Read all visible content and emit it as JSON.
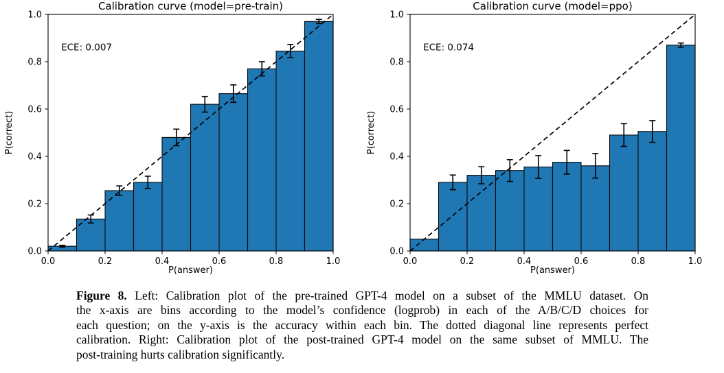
{
  "page": {
    "background": "#ffffff"
  },
  "caption": {
    "label": "Figure 8.",
    "lines": [
      "Left: Calibration plot of the pre-trained GPT-4 model on a subset of the MMLU dataset. On",
      "the x-axis are bins according to the model’s confidence (logprob) in each of the A/B/C/D choices for",
      "each question; on the y-axis is the accuracy within each bin. The dotted diagonal line represents perfect",
      "calibration. Right: Calibration plot of the post-trained GPT-4 model on the same subset of MMLU. The",
      "post-training hurts calibration significantly."
    ]
  },
  "chart_data": [
    {
      "type": "bar",
      "title": "Calibration curve (model=pre-train)",
      "xlabel": "P(answer)",
      "ylabel": "P(correct)",
      "annotation": "ECE: 0.007",
      "bin_edges": [
        0.0,
        0.1,
        0.2,
        0.3,
        0.4,
        0.5,
        0.6,
        0.7,
        0.8,
        0.9,
        1.0
      ],
      "values": [
        0.02,
        0.135,
        0.255,
        0.29,
        0.48,
        0.62,
        0.665,
        0.77,
        0.845,
        0.97
      ],
      "errors": [
        0.004,
        0.017,
        0.02,
        0.026,
        0.035,
        0.033,
        0.037,
        0.03,
        0.028,
        0.009
      ],
      "xlim": [
        0.0,
        1.0
      ],
      "ylim": [
        0.0,
        1.0
      ],
      "xticks": [
        "0.0",
        "0.2",
        "0.4",
        "0.6",
        "0.8",
        "1.0"
      ],
      "yticks": [
        "0.0",
        "0.2",
        "0.4",
        "0.6",
        "0.8",
        "1.0"
      ],
      "bar_color": "#1f77b4",
      "bar_edge_color": "#0a0a0a",
      "error_color": "#000000",
      "diagonal": {
        "style": "dashed",
        "from": [
          0,
          0
        ],
        "to": [
          1,
          1
        ],
        "color": "#000000"
      },
      "grid": false,
      "legend": null
    },
    {
      "type": "bar",
      "title": "Calibration curve (model=ppo)",
      "xlabel": "P(answer)",
      "ylabel": "P(correct)",
      "annotation": "ECE: 0.074",
      "bin_edges": [
        0.0,
        0.1,
        0.2,
        0.3,
        0.4,
        0.5,
        0.6,
        0.7,
        0.8,
        0.9,
        1.0
      ],
      "values": [
        0.05,
        0.29,
        0.32,
        0.34,
        0.355,
        0.375,
        0.36,
        0.49,
        0.505,
        0.87
      ],
      "errors": [
        0,
        0.031,
        0.036,
        0.046,
        0.048,
        0.05,
        0.052,
        0.048,
        0.046,
        0.009
      ],
      "xlim": [
        0.0,
        1.0
      ],
      "ylim": [
        0.0,
        1.0
      ],
      "xticks": [
        "0.0",
        "0.2",
        "0.4",
        "0.6",
        "0.8",
        "1.0"
      ],
      "yticks": [
        "0.0",
        "0.2",
        "0.4",
        "0.6",
        "0.8",
        "1.0"
      ],
      "bar_color": "#1f77b4",
      "bar_edge_color": "#0a0a0a",
      "error_color": "#000000",
      "diagonal": {
        "style": "dashed",
        "from": [
          0,
          0
        ],
        "to": [
          1,
          1
        ],
        "color": "#000000"
      },
      "grid": false,
      "legend": null
    }
  ]
}
